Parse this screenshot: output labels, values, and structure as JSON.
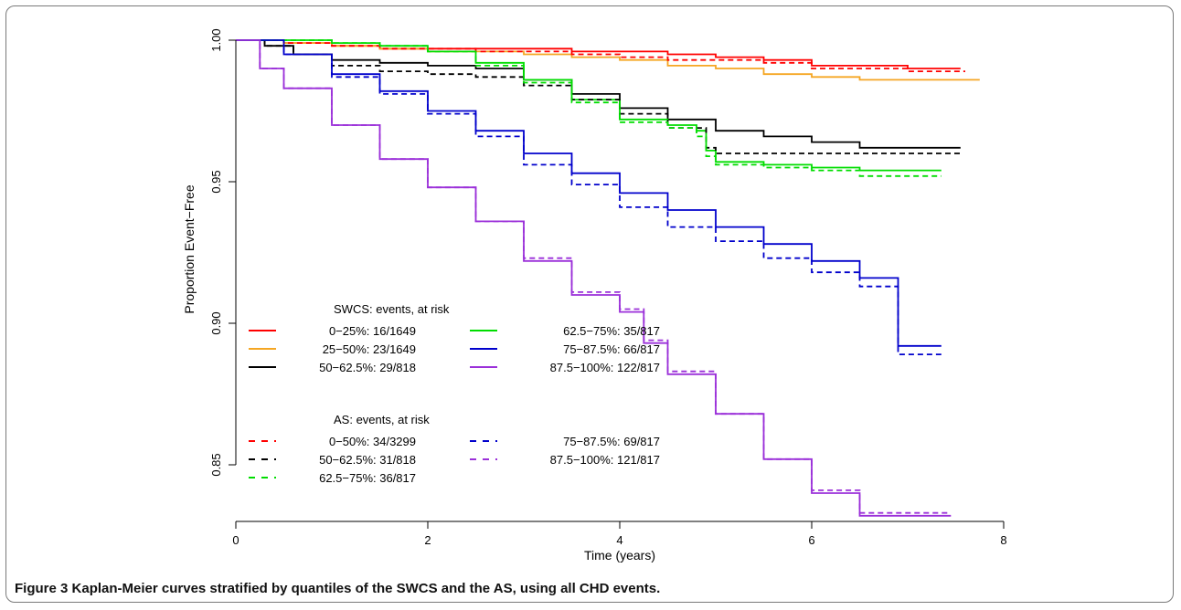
{
  "figure": {
    "caption_label": "Figure 3",
    "caption_text": "Kaplan-Meier curves stratified by quantiles of the SWCS and the AS, using all CHD events."
  },
  "chart_data": {
    "type": "line",
    "step": true,
    "xlabel": "Time (years)",
    "ylabel": "Proportion Event−Free",
    "xlim": [
      0,
      8
    ],
    "ylim": [
      0.83,
      1.0
    ],
    "xticks": [
      0,
      2,
      4,
      6,
      8
    ],
    "yticks": [
      0.85,
      0.9,
      0.95,
      1.0
    ],
    "ytick_labels": [
      "0.85",
      "0.90",
      "0.95",
      "1.00"
    ],
    "grid": false,
    "legend_groups": [
      {
        "title": "SWCS: events, at risk",
        "placement": "left-lower",
        "entries": [
          {
            "label": "0−25%: 16/1649",
            "color": "#ff0000",
            "dash": false
          },
          {
            "label": "25−50%: 23/1649",
            "color": "#f5a623",
            "dash": false
          },
          {
            "label": "50−62.5%: 29/818",
            "color": "#000000",
            "dash": false
          },
          {
            "label": "62.5−75%: 35/817",
            "color": "#00dd00",
            "dash": false
          },
          {
            "label": "75−87.5%: 66/817",
            "color": "#0000cc",
            "dash": false
          },
          {
            "label": "87.5−100%: 122/817",
            "color": "#9b30d9",
            "dash": false
          }
        ]
      },
      {
        "title": "AS: events, at risk",
        "placement": "left-bottom",
        "entries": [
          {
            "label": "0−50%: 34/3299",
            "color": "#ff0000",
            "dash": true
          },
          {
            "label": "50−62.5%: 31/818",
            "color": "#000000",
            "dash": true
          },
          {
            "label": "62.5−75%: 36/817",
            "color": "#00dd00",
            "dash": true
          },
          {
            "label": "75−87.5%: 69/817",
            "color": "#0000cc",
            "dash": true
          },
          {
            "label": "87.5−100%: 121/817",
            "color": "#9b30d9",
            "dash": true
          }
        ]
      }
    ],
    "series": [
      {
        "name": "0−25%: 16/1649",
        "color": "#ff0000",
        "dash": false,
        "x": [
          0,
          0.5,
          1.0,
          1.5,
          2.0,
          2.5,
          3.0,
          3.5,
          4.0,
          4.5,
          5.0,
          5.5,
          6.0,
          6.5,
          7.0,
          7.55
        ],
        "y": [
          1.0,
          0.999,
          0.998,
          0.997,
          0.997,
          0.997,
          0.997,
          0.996,
          0.996,
          0.995,
          0.994,
          0.993,
          0.991,
          0.991,
          0.99,
          0.99
        ]
      },
      {
        "name": "25−50%: 23/1649",
        "color": "#f5a623",
        "dash": false,
        "x": [
          0,
          0.5,
          1.0,
          1.5,
          2.0,
          2.5,
          3.0,
          3.5,
          4.0,
          4.5,
          5.0,
          5.5,
          6.0,
          6.5,
          7.0,
          7.75
        ],
        "y": [
          1.0,
          0.999,
          0.998,
          0.997,
          0.996,
          0.996,
          0.995,
          0.994,
          0.993,
          0.991,
          0.99,
          0.988,
          0.987,
          0.986,
          0.986,
          0.986
        ]
      },
      {
        "name": "50−62.5%: 29/818",
        "color": "#000000",
        "dash": false,
        "x": [
          0,
          0.3,
          0.6,
          1.0,
          1.5,
          2.0,
          2.5,
          3.0,
          3.5,
          4.0,
          4.5,
          5.0,
          5.5,
          6.0,
          6.5,
          7.55
        ],
        "y": [
          1.0,
          0.998,
          0.995,
          0.993,
          0.992,
          0.991,
          0.99,
          0.986,
          0.981,
          0.976,
          0.972,
          0.968,
          0.966,
          0.964,
          0.962,
          0.962
        ]
      },
      {
        "name": "62.5−75%: 35/817",
        "color": "#00dd00",
        "dash": false,
        "x": [
          0,
          0.5,
          1.0,
          1.5,
          2.0,
          2.5,
          3.0,
          3.5,
          4.0,
          4.5,
          4.8,
          4.9,
          5.0,
          5.5,
          6.0,
          6.5,
          7.35
        ],
        "y": [
          1.0,
          1.0,
          0.999,
          0.998,
          0.996,
          0.992,
          0.986,
          0.979,
          0.972,
          0.97,
          0.968,
          0.961,
          0.957,
          0.956,
          0.955,
          0.954,
          0.954
        ]
      },
      {
        "name": "75−87.5%: 66/817",
        "color": "#0000cc",
        "dash": false,
        "x": [
          0,
          0.5,
          1.0,
          1.5,
          2.0,
          2.5,
          3.0,
          3.5,
          4.0,
          4.5,
          5.0,
          5.5,
          6.0,
          6.5,
          6.9,
          7.35
        ],
        "y": [
          1.0,
          0.995,
          0.988,
          0.982,
          0.975,
          0.968,
          0.96,
          0.953,
          0.946,
          0.94,
          0.934,
          0.928,
          0.922,
          0.916,
          0.892,
          0.892
        ]
      },
      {
        "name": "87.5−100%: 122/817",
        "color": "#9b30d9",
        "dash": false,
        "x": [
          0,
          0.25,
          0.5,
          1.0,
          1.5,
          2.0,
          2.5,
          3.0,
          3.5,
          4.0,
          4.25,
          4.5,
          5.0,
          5.5,
          6.0,
          6.5,
          7.45
        ],
        "y": [
          1.0,
          0.99,
          0.983,
          0.97,
          0.958,
          0.948,
          0.936,
          0.922,
          0.91,
          0.904,
          0.893,
          0.882,
          0.868,
          0.852,
          0.84,
          0.832,
          0.832
        ]
      },
      {
        "name": "0−50%: 34/3299",
        "color": "#ff0000",
        "dash": true,
        "x": [
          0,
          0.5,
          1.0,
          1.5,
          2.0,
          2.5,
          3.0,
          3.5,
          4.0,
          4.5,
          5.0,
          5.5,
          6.0,
          6.5,
          7.0,
          7.6
        ],
        "y": [
          1.0,
          0.999,
          0.998,
          0.997,
          0.997,
          0.996,
          0.996,
          0.995,
          0.994,
          0.993,
          0.993,
          0.992,
          0.99,
          0.99,
          0.989,
          0.989
        ]
      },
      {
        "name": "50−62.5%: 31/818",
        "color": "#000000",
        "dash": true,
        "x": [
          0,
          0.3,
          0.6,
          1.0,
          1.5,
          2.0,
          2.5,
          3.0,
          3.5,
          4.0,
          4.5,
          4.9,
          5.0,
          5.5,
          6.0,
          6.5,
          7.55
        ],
        "y": [
          1.0,
          0.998,
          0.995,
          0.991,
          0.989,
          0.988,
          0.987,
          0.984,
          0.979,
          0.974,
          0.969,
          0.962,
          0.96,
          0.96,
          0.96,
          0.96,
          0.96
        ]
      },
      {
        "name": "62.5−75%: 36/817",
        "color": "#00dd00",
        "dash": true,
        "x": [
          0,
          0.5,
          1.0,
          1.5,
          2.0,
          2.5,
          3.0,
          3.5,
          4.0,
          4.5,
          4.8,
          4.9,
          5.0,
          5.5,
          6.0,
          6.5,
          7.35
        ],
        "y": [
          1.0,
          1.0,
          0.999,
          0.998,
          0.996,
          0.991,
          0.985,
          0.978,
          0.971,
          0.969,
          0.966,
          0.959,
          0.956,
          0.955,
          0.954,
          0.952,
          0.952
        ]
      },
      {
        "name": "75−87.5%: 69/817",
        "color": "#0000cc",
        "dash": true,
        "x": [
          0,
          0.5,
          1.0,
          1.5,
          2.0,
          2.5,
          3.0,
          3.5,
          4.0,
          4.5,
          5.0,
          5.5,
          6.0,
          6.5,
          6.9,
          7.35
        ],
        "y": [
          1.0,
          0.995,
          0.987,
          0.981,
          0.974,
          0.966,
          0.956,
          0.949,
          0.941,
          0.934,
          0.929,
          0.923,
          0.918,
          0.913,
          0.889,
          0.889
        ]
      },
      {
        "name": "87.5−100%: 121/817",
        "color": "#9b30d9",
        "dash": true,
        "x": [
          0,
          0.25,
          0.5,
          1.0,
          1.5,
          2.0,
          2.5,
          3.0,
          3.5,
          4.0,
          4.25,
          4.5,
          5.0,
          5.5,
          6.0,
          6.5,
          7.45
        ],
        "y": [
          1.0,
          0.99,
          0.983,
          0.97,
          0.958,
          0.948,
          0.936,
          0.923,
          0.911,
          0.905,
          0.894,
          0.883,
          0.868,
          0.852,
          0.841,
          0.833,
          0.833
        ]
      }
    ]
  }
}
